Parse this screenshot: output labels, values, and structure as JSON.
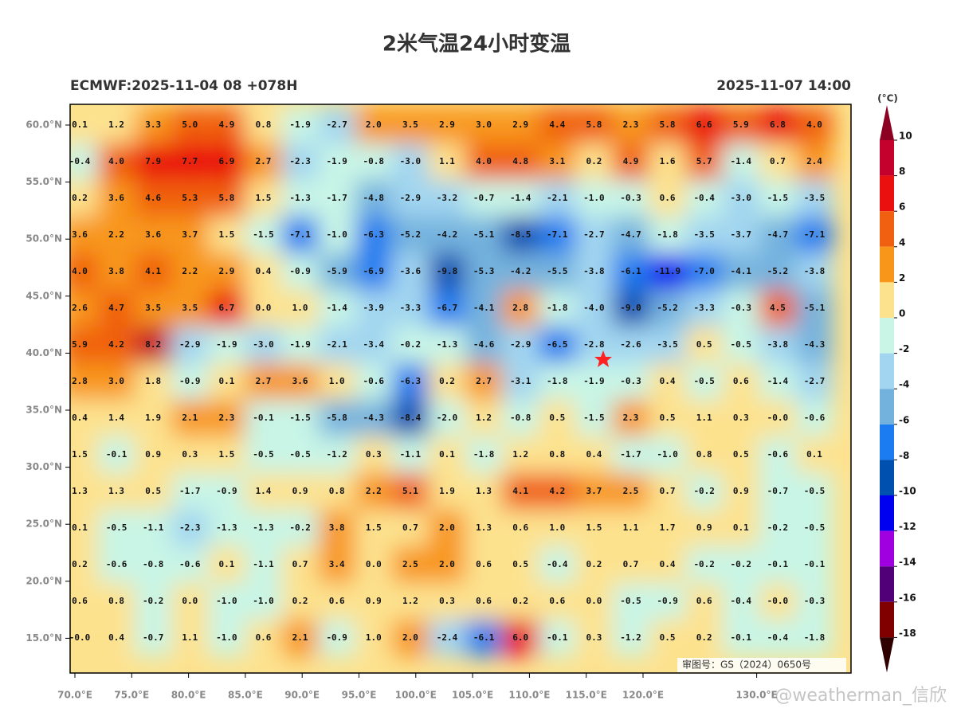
{
  "title": "2米气温24小时变温",
  "left_label": "ECMWF:2025-11-04 08 +078H",
  "right_label": "2025-11-07 14:00",
  "unit": "(°C)",
  "lat_ticks": [
    {
      "value": 60,
      "label": "60.0°N"
    },
    {
      "value": 55,
      "label": "55.0°N"
    },
    {
      "value": 50,
      "label": "50.0°N"
    },
    {
      "value": 45,
      "label": "45.0°N"
    },
    {
      "value": 40,
      "label": "40.0°N"
    },
    {
      "value": 35,
      "label": "35.0°N"
    },
    {
      "value": 30,
      "label": "30.0°N"
    },
    {
      "value": 25,
      "label": "25.0°N"
    },
    {
      "value": 20,
      "label": "20.0°N"
    },
    {
      "value": 15,
      "label": "15.0°N"
    }
  ],
  "lon_ticks": [
    {
      "value": 70,
      "label": "70.0°E"
    },
    {
      "value": 75,
      "label": "75.0°E"
    },
    {
      "value": 80,
      "label": "80.0°E"
    },
    {
      "value": 85,
      "label": "85.0°E"
    },
    {
      "value": 90,
      "label": "90.0°E"
    },
    {
      "value": 95,
      "label": "95.0°E"
    },
    {
      "value": 100,
      "label": "100.0°E"
    },
    {
      "value": 105,
      "label": "105.0°E"
    },
    {
      "value": 110,
      "label": "110.0°E"
    },
    {
      "value": 115,
      "label": "115.0°E"
    },
    {
      "value": 120,
      "label": "120.0°E"
    },
    {
      "value": 130,
      "label": "130.0°E"
    }
  ],
  "grid": [
    [
      "0.1",
      "1.2",
      "3.3",
      "5.0",
      "4.9",
      "0.8",
      "-1.9",
      "-2.7",
      "2.0",
      "3.5",
      "2.9",
      "3.0",
      "2.9",
      "4.4",
      "5.8",
      "2.3",
      "5.8",
      "6.6",
      "5.9",
      "6.8",
      "4.0"
    ],
    [
      "-0.4",
      "4.0",
      "7.9",
      "7.7",
      "6.9",
      "2.7",
      "-2.3",
      "-1.9",
      "-0.8",
      "-3.0",
      "1.1",
      "4.0",
      "4.8",
      "3.1",
      "0.2",
      "4.9",
      "1.6",
      "5.7",
      "-1.4",
      "0.7",
      "2.4"
    ],
    [
      "0.2",
      "3.6",
      "4.6",
      "5.3",
      "5.8",
      "1.5",
      "-1.3",
      "-1.7",
      "-4.8",
      "-2.9",
      "-3.2",
      "-0.7",
      "-1.4",
      "-2.1",
      "-1.0",
      "-0.3",
      "0.6",
      "-0.4",
      "-3.0",
      "-1.5",
      "-3.5"
    ],
    [
      "3.6",
      "2.2",
      "3.6",
      "3.7",
      "1.5",
      "-1.5",
      "-7.1",
      "-1.0",
      "-6.3",
      "-5.2",
      "-4.2",
      "-5.1",
      "-8.5",
      "-7.1",
      "-2.7",
      "-4.7",
      "-1.8",
      "-3.5",
      "-3.7",
      "-4.7",
      "-7.1"
    ],
    [
      "4.0",
      "3.8",
      "4.1",
      "2.2",
      "2.9",
      "0.4",
      "-0.9",
      "-5.9",
      "-6.9",
      "-3.6",
      "-9.8",
      "-5.3",
      "-4.2",
      "-5.5",
      "-3.8",
      "-6.1",
      "-11.9",
      "-7.0",
      "-4.1",
      "-5.2",
      "-3.8"
    ],
    [
      "2.6",
      "4.7",
      "3.5",
      "3.5",
      "6.7",
      "0.0",
      "1.0",
      "-1.4",
      "-3.9",
      "-3.3",
      "-6.7",
      "-4.1",
      "2.8",
      "-1.8",
      "-4.0",
      "-9.0",
      "-5.2",
      "-3.3",
      "-0.3",
      "4.5",
      "-5.1"
    ],
    [
      "5.9",
      "4.2",
      "8.2",
      "-2.9",
      "-1.9",
      "-3.0",
      "-1.9",
      "-2.1",
      "-3.4",
      "-0.2",
      "-1.3",
      "-4.6",
      "-2.9",
      "-6.5",
      "-2.8",
      "-2.6",
      "-3.5",
      "0.5",
      "-0.5",
      "-3.8",
      "-4.3"
    ],
    [
      "2.8",
      "3.0",
      "1.8",
      "-0.9",
      "0.1",
      "2.7",
      "3.6",
      "1.0",
      "-0.6",
      "-6.3",
      "0.2",
      "2.7",
      "-3.1",
      "-1.8",
      "-1.9",
      "-0.3",
      "0.4",
      "-0.5",
      "0.6",
      "-1.4",
      "-2.7"
    ],
    [
      "0.4",
      "1.4",
      "1.9",
      "2.1",
      "2.3",
      "-0.1",
      "-1.5",
      "-5.8",
      "-4.3",
      "-8.4",
      "-2.0",
      "1.2",
      "-0.8",
      "0.5",
      "-1.5",
      "2.3",
      "0.5",
      "1.1",
      "0.3",
      "-0.0",
      "-0.6"
    ],
    [
      "1.5",
      "-0.1",
      "0.9",
      "0.3",
      "1.5",
      "-0.5",
      "-0.5",
      "-1.2",
      "0.3",
      "-1.1",
      "0.1",
      "-1.8",
      "1.2",
      "0.8",
      "0.4",
      "-1.7",
      "-1.0",
      "0.8",
      "0.5",
      "-0.6",
      "0.1"
    ],
    [
      "1.3",
      "1.3",
      "0.5",
      "-1.7",
      "-0.9",
      "1.4",
      "0.9",
      "0.8",
      "2.2",
      "5.1",
      "1.9",
      "1.3",
      "4.1",
      "4.2",
      "3.7",
      "2.5",
      "0.7",
      "-0.2",
      "0.9",
      "-0.7",
      "-0.5"
    ],
    [
      "0.1",
      "-0.5",
      "-1.1",
      "-2.3",
      "-1.3",
      "-1.3",
      "-0.2",
      "3.8",
      "1.5",
      "0.7",
      "2.0",
      "1.3",
      "0.6",
      "1.0",
      "1.5",
      "1.1",
      "1.7",
      "0.9",
      "0.1",
      "-0.2",
      "-0.5"
    ],
    [
      "0.2",
      "-0.6",
      "-0.8",
      "-0.6",
      "0.1",
      "-1.1",
      "0.7",
      "3.4",
      "0.0",
      "2.5",
      "2.0",
      "0.6",
      "0.5",
      "-0.4",
      "0.2",
      "0.7",
      "0.4",
      "-0.2",
      "-0.2",
      "-0.1",
      "-0.1"
    ],
    [
      "0.6",
      "0.8",
      "-0.2",
      "0.0",
      "-1.0",
      "-1.0",
      "0.2",
      "0.6",
      "0.9",
      "1.2",
      "0.3",
      "0.6",
      "0.2",
      "0.6",
      "0.0",
      "-0.5",
      "-0.9",
      "0.6",
      "-0.4",
      "-0.0",
      "-0.3"
    ],
    [
      "-0.0",
      "0.4",
      "-0.7",
      "1.1",
      "-1.0",
      "0.6",
      "2.1",
      "-0.9",
      "1.0",
      "2.0",
      "-2.4",
      "-6.1",
      "6.0",
      "-0.1",
      "0.3",
      "-1.2",
      "0.5",
      "0.2",
      "-0.1",
      "-0.4",
      "-1.8"
    ]
  ],
  "colorbar": {
    "labels": [
      10,
      8,
      6,
      4,
      2,
      0,
      -2,
      -4,
      -6,
      -8,
      -10,
      -12,
      -14,
      -16,
      -18
    ],
    "colors": [
      "#8c0022",
      "#c4002c",
      "#ea1010",
      "#f06010",
      "#f8961a",
      "#fde28e",
      "#c8f5e6",
      "#a2d6f0",
      "#74b2de",
      "#1a7cf0",
      "#0050b0",
      "#0000f0",
      "#a000e0",
      "#520078",
      "#800000",
      "#2e0000"
    ]
  },
  "approval": "审图号：GS（2024）0650号",
  "watermark": "@weatherman_信欣"
}
